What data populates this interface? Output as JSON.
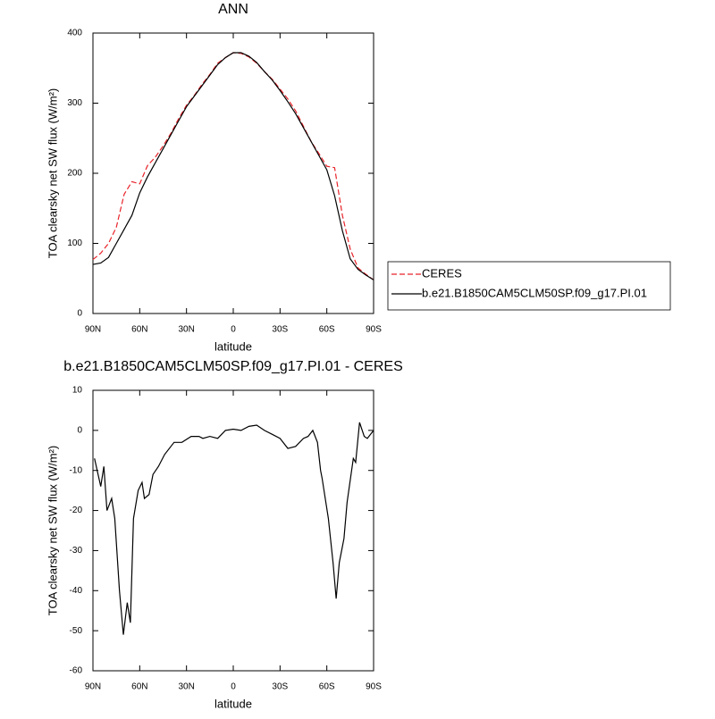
{
  "chart_data": [
    {
      "type": "line",
      "title": "ANN",
      "xlabel": "latitude",
      "ylabel": "TOA clearsky net SW flux (W/m²)",
      "x": [
        90,
        85,
        80,
        75,
        70,
        65,
        60,
        55,
        50,
        45,
        40,
        35,
        30,
        25,
        20,
        15,
        10,
        5,
        0,
        -5,
        -10,
        -15,
        -20,
        -25,
        -30,
        -35,
        -40,
        -45,
        -50,
        -55,
        -60,
        -65,
        -70,
        -75,
        -80,
        -85,
        -90
      ],
      "series": [
        {
          "name": "CERES",
          "color": "#e8232a",
          "dash": true,
          "values": [
            77,
            86,
            100,
            123,
            170,
            188,
            185,
            211,
            223,
            239,
            257,
            278,
            297,
            311,
            327,
            341,
            357,
            365,
            372,
            371,
            366,
            357,
            345,
            334,
            320,
            306,
            289,
            267,
            245,
            228,
            210,
            208,
            140,
            92,
            65,
            56,
            48
          ]
        },
        {
          "name": "b.e21.B1850CAM5CLM50SP.f09_g17.PI.01",
          "color": "#000000",
          "dash": false,
          "values": [
            70,
            72,
            80,
            100,
            120,
            140,
            172,
            195,
            215,
            235,
            255,
            275,
            295,
            310,
            325,
            340,
            355,
            365,
            372,
            372,
            367,
            358,
            345,
            333,
            318,
            302,
            285,
            265,
            245,
            225,
            205,
            168,
            118,
            78,
            63,
            55,
            48
          ]
        }
      ],
      "xlim": [
        90,
        -90
      ],
      "xticks": [
        {
          "value": 90,
          "label": "90N"
        },
        {
          "value": 60,
          "label": "60N"
        },
        {
          "value": 30,
          "label": "30N"
        },
        0,
        {
          "value": -30,
          "label": "30S"
        },
        {
          "value": -60,
          "label": "60S"
        },
        {
          "value": -90,
          "label": "90S"
        }
      ],
      "ylim": [
        0,
        400
      ],
      "yticks": [
        0,
        100,
        200,
        300,
        400
      ],
      "legend": "right"
    },
    {
      "type": "line",
      "title": "b.e21.B1850CAM5CLM50SP.f09_g17.PI.01 - CERES",
      "xlabel": "latitude",
      "ylabel": "TOA clearsky net SW flux (W/m²)",
      "x": [
        89,
        85,
        83,
        81,
        78,
        76,
        73,
        70.5,
        68,
        66,
        64,
        61,
        58.5,
        57,
        54,
        51.5,
        48,
        44,
        38,
        33,
        27,
        22,
        19.5,
        15,
        10,
        5,
        0,
        -5,
        -10,
        -15,
        -20,
        -25,
        -30,
        -35,
        -40,
        -45,
        -48,
        -51,
        -54,
        -56,
        -57,
        -61,
        -64,
        -66,
        -68,
        -71,
        -73,
        -77,
        -78.5,
        -81,
        -84,
        -86,
        -90
      ],
      "color": "#000000",
      "values": [
        -7,
        -14,
        -9,
        -20,
        -17,
        -22,
        -40,
        -51,
        -43,
        -48,
        -22,
        -15,
        -13,
        -17,
        -16,
        -11,
        -9,
        -6,
        -3,
        -3,
        -1.5,
        -1.5,
        -2,
        -1.5,
        -2,
        0,
        0.3,
        0,
        1,
        1.3,
        0,
        -1,
        -2,
        -4.5,
        -4,
        -2,
        -1.5,
        0,
        -3,
        -10,
        -12,
        -22,
        -33,
        -42,
        -33,
        -27,
        -18,
        -7,
        -8,
        2,
        -1.5,
        -2,
        0
      ],
      "xlim": [
        90,
        -90
      ],
      "xticks": [
        {
          "value": 90,
          "label": "90N"
        },
        {
          "value": 60,
          "label": "60N"
        },
        {
          "value": 30,
          "label": "30N"
        },
        0,
        {
          "value": -30,
          "label": "30S"
        },
        {
          "value": -60,
          "label": "60S"
        },
        {
          "value": -90,
          "label": "90S"
        }
      ],
      "ylim": [
        -60,
        10
      ],
      "yticks": [
        -60,
        -50,
        -40,
        -30,
        -20,
        -10,
        0,
        10
      ]
    }
  ]
}
